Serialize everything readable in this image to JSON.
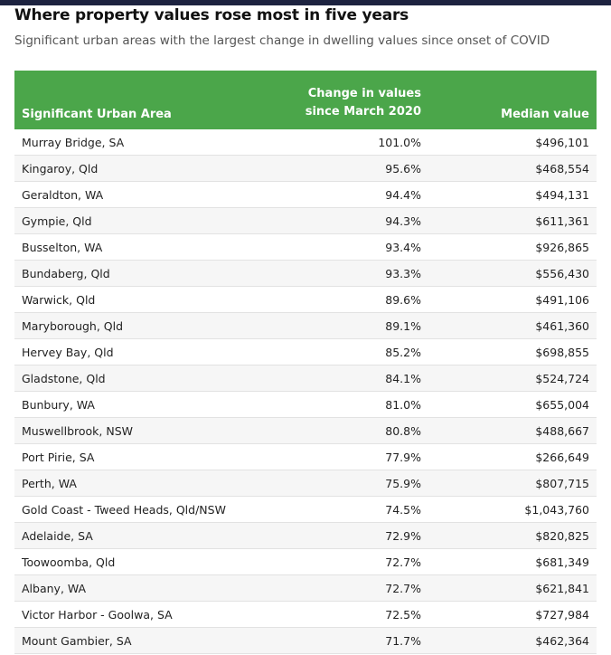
{
  "header": {
    "title": "Where property values rose most in five years",
    "subtitle": "Significant urban areas with the largest change in dwelling values since onset of COVID"
  },
  "table": {
    "columns": [
      "Significant Urban Area",
      "Change in values since March 2020",
      "Median value"
    ],
    "rows": [
      [
        "Murray Bridge, SA",
        "101.0%",
        "$496,101"
      ],
      [
        "Kingaroy, Qld",
        "95.6%",
        "$468,554"
      ],
      [
        "Geraldton, WA",
        "94.4%",
        "$494,131"
      ],
      [
        "Gympie, Qld",
        "94.3%",
        "$611,361"
      ],
      [
        "Busselton, WA",
        "93.4%",
        "$926,865"
      ],
      [
        "Bundaberg, Qld",
        "93.3%",
        "$556,430"
      ],
      [
        "Warwick, Qld",
        "89.6%",
        "$491,106"
      ],
      [
        "Maryborough, Qld",
        "89.1%",
        "$461,360"
      ],
      [
        "Hervey Bay, Qld",
        "85.2%",
        "$698,855"
      ],
      [
        "Gladstone, Qld",
        "84.1%",
        "$524,724"
      ],
      [
        "Bunbury, WA",
        "81.0%",
        "$655,004"
      ],
      [
        "Muswellbrook, NSW",
        "80.8%",
        "$488,667"
      ],
      [
        "Port Pirie, SA",
        "77.9%",
        "$266,649"
      ],
      [
        "Perth, WA",
        "75.9%",
        "$807,715"
      ],
      [
        "Gold Coast - Tweed Heads, Qld/NSW",
        "74.5%",
        "$1,043,760"
      ],
      [
        "Adelaide, SA",
        "72.9%",
        "$820,825"
      ],
      [
        "Toowoomba, Qld",
        "72.7%",
        "$681,349"
      ],
      [
        "Albany, WA",
        "72.7%",
        "$621,841"
      ],
      [
        "Victor Harbor - Goolwa, SA",
        "72.5%",
        "$727,984"
      ],
      [
        "Mount Gambier, SA",
        "71.7%",
        "$462,364"
      ]
    ]
  }
}
